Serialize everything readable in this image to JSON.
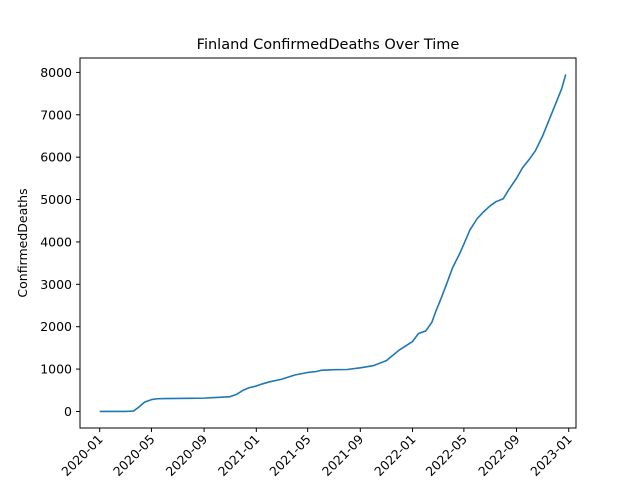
{
  "chart_data": {
    "type": "line",
    "title": "Finland  ConfirmedDeaths Over Time",
    "xlabel": "",
    "ylabel": "ConfirmedDeaths",
    "xlim": [
      "2019-11-16",
      "2023-01-18"
    ],
    "ylim": [
      -390,
      8340
    ],
    "grid": false,
    "legend": "none",
    "line_color": "#1f77b4",
    "xticks": [
      "2020-01",
      "2020-05",
      "2020-09",
      "2021-01",
      "2021-05",
      "2021-09",
      "2022-01",
      "2022-05",
      "2022-09",
      "2023-01"
    ],
    "yticks": [
      0,
      1000,
      2000,
      3000,
      4000,
      5000,
      6000,
      7000,
      8000
    ],
    "series": [
      {
        "x": [
          "2020-01-01",
          "2020-02-01",
          "2020-03-01",
          "2020-03-20",
          "2020-04-01",
          "2020-04-15",
          "2020-05-01",
          "2020-05-15",
          "2020-06-01",
          "2020-07-01",
          "2020-08-01",
          "2020-09-01",
          "2020-10-01",
          "2020-11-01",
          "2020-11-15",
          "2020-12-01",
          "2020-12-15",
          "2021-01-01",
          "2021-01-15",
          "2021-02-01",
          "2021-03-01",
          "2021-04-01",
          "2021-05-01",
          "2021-05-20",
          "2021-06-01",
          "2021-07-01",
          "2021-08-01",
          "2021-09-01",
          "2021-10-01",
          "2021-11-01",
          "2021-12-01",
          "2022-01-01",
          "2022-01-15",
          "2022-02-01",
          "2022-02-15",
          "2022-02-24",
          "2022-03-10",
          "2022-03-25",
          "2022-04-05",
          "2022-04-20",
          "2022-05-01",
          "2022-05-15",
          "2022-06-01",
          "2022-06-15",
          "2022-07-01",
          "2022-07-15",
          "2022-08-01",
          "2022-08-15",
          "2022-09-01",
          "2022-09-15",
          "2022-10-01",
          "2022-10-15",
          "2022-11-01",
          "2022-11-15",
          "2022-12-01",
          "2022-12-15",
          "2022-12-25"
        ],
        "y": [
          0,
          0,
          0,
          10,
          100,
          220,
          280,
          300,
          305,
          308,
          310,
          315,
          330,
          350,
          400,
          500,
          560,
          600,
          650,
          700,
          760,
          860,
          920,
          940,
          970,
          985,
          990,
          1030,
          1080,
          1200,
          1450,
          1650,
          1840,
          1900,
          2100,
          2350,
          2700,
          3100,
          3400,
          3700,
          3950,
          4280,
          4550,
          4700,
          4850,
          4950,
          5020,
          5250,
          5500,
          5750,
          5950,
          6150,
          6500,
          6850,
          7250,
          7600,
          7950
        ]
      }
    ]
  }
}
